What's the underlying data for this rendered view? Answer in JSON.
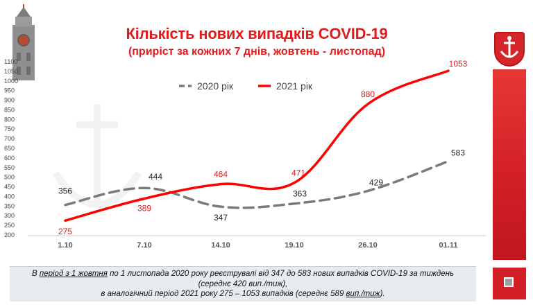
{
  "title": "Кількість нових випадків COVID-19",
  "subtitle": "(приріст за кожних 7 днів, жовтень - листопад)",
  "footer": {
    "line1_pre": "В ",
    "line1_u1": "період з 1 жовтня",
    "line1_mid": " по 1 листопада 2020 року реєструвалі від 347 до 583 нових випадків COVID-19 за тиждень",
    "line2": "(середнє 420 вип./тиж),",
    "line3_pre": "в аналогічний період 2021 року 275 – 1053 випадків (середнє 589 ",
    "line3_u": "вип./тиж",
    "line3_post": ")."
  },
  "colors": {
    "series_2020": "#7a7a7a",
    "series_2021": "#ff0000",
    "accent": "#d32027"
  },
  "chart_data": {
    "type": "line",
    "categories": [
      "1.10",
      "7.10",
      "14.10",
      "19.10",
      "26.10",
      "01.11"
    ],
    "series": [
      {
        "name": "2020 рік",
        "values": [
          356,
          444,
          347,
          363,
          429,
          583
        ],
        "style": "dashed",
        "color": "#7a7a7a"
      },
      {
        "name": "2021 рік",
        "values": [
          275,
          389,
          464,
          471,
          880,
          1053
        ],
        "style": "solid",
        "color": "#ff0000"
      }
    ],
    "yticks": [
      200,
      250,
      300,
      350,
      400,
      450,
      500,
      550,
      600,
      650,
      700,
      750,
      800,
      850,
      900,
      950,
      1000,
      1050,
      1100
    ],
    "ylim": [
      200,
      1100
    ],
    "legend_position": "top",
    "grid": false
  }
}
